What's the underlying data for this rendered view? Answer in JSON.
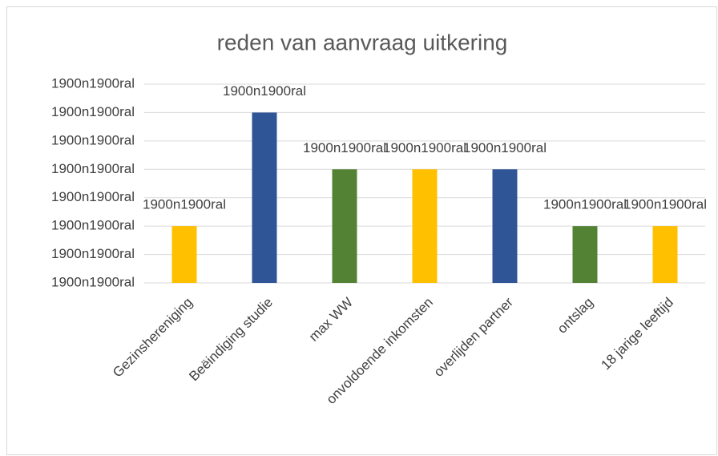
{
  "chart_data": {
    "type": "bar",
    "title": "reden van aanvraag uitkering",
    "categories": [
      "Gezinshereniging",
      "Beëindiging studie",
      "max WW",
      "onvoldoende inkomsten",
      "overlijden partner",
      "ontslag",
      "18 jarige leeftijd"
    ],
    "values": [
      2,
      6,
      4,
      4,
      4,
      2,
      2
    ],
    "value_labels": [
      "1900n1900ral",
      "1900n1900ral",
      "1900n1900ral",
      "1900n1900ral",
      "1900n1900ral",
      "1900n1900ral",
      "1900n1900ral"
    ],
    "colors": [
      "#ffc000",
      "#2f5597",
      "#548235",
      "#ffc000",
      "#2f5597",
      "#548235",
      "#ffc000"
    ],
    "ylim": [
      0,
      7
    ],
    "yticks": [
      {
        "value": 0,
        "label": "1900n1900ral"
      },
      {
        "value": 1,
        "label": "1900n1900ral"
      },
      {
        "value": 2,
        "label": "1900n1900ral"
      },
      {
        "value": 3,
        "label": "1900n1900ral"
      },
      {
        "value": 4,
        "label": "1900n1900ral"
      },
      {
        "value": 5,
        "label": "1900n1900ral"
      },
      {
        "value": 6,
        "label": "1900n1900ral"
      },
      {
        "value": 7,
        "label": "1900n1900ral"
      }
    ],
    "grid": true
  }
}
